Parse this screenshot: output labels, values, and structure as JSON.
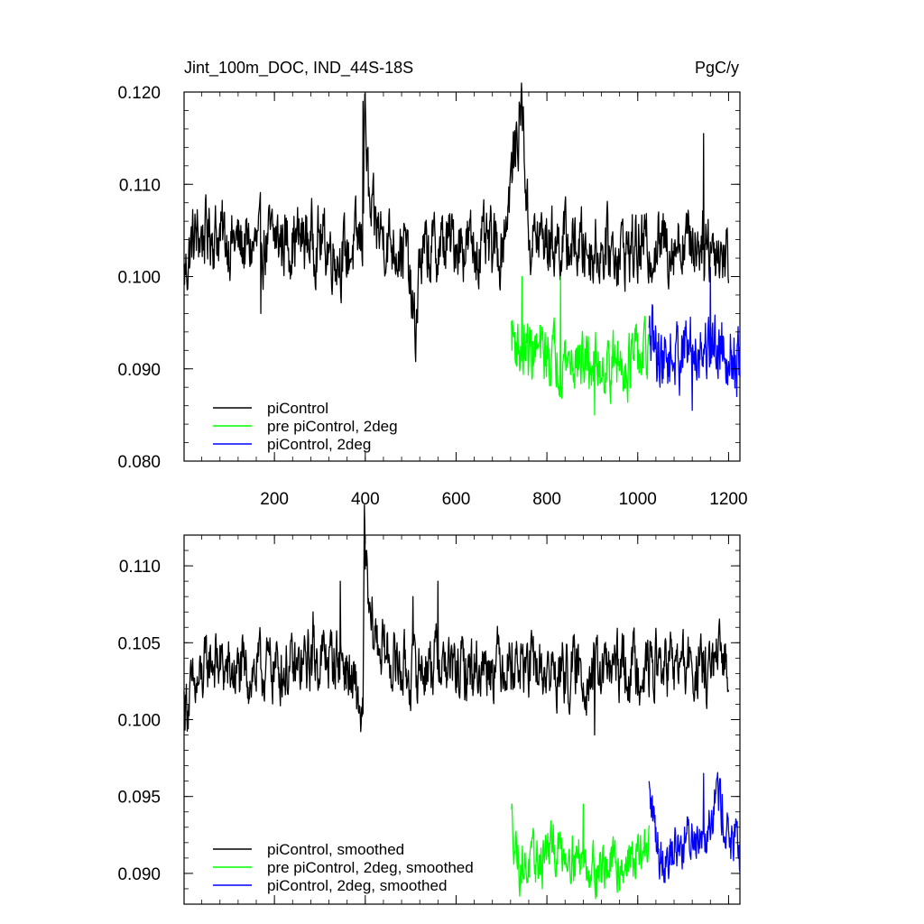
{
  "chart_data": [
    {
      "type": "line",
      "title": "Jint_100m_DOC, IND_44S-18S",
      "units": "PgC/y",
      "xlim": [
        1,
        1225
      ],
      "ylim": [
        0.08,
        0.12
      ],
      "x_ticks": [
        200,
        400,
        600,
        800,
        1000,
        1200
      ],
      "x_tick_labels": [
        "200",
        "400",
        "600",
        "800",
        "1000",
        "1200"
      ],
      "y_ticks": [
        0.08,
        0.09,
        0.1,
        0.11,
        0.12
      ],
      "y_tick_labels": [
        "0.080",
        "0.090",
        "0.100",
        "0.110",
        "0.120"
      ],
      "legend_position": "bottom-left",
      "series": [
        {
          "name": "piControl",
          "color": "#000000",
          "x_range": [
            1,
            1200
          ],
          "anchors": [
            [
              1,
              0.1
            ],
            [
              20,
              0.104
            ],
            [
              60,
              0.105
            ],
            [
              100,
              0.104
            ],
            [
              150,
              0.103
            ],
            [
              200,
              0.104
            ],
            [
              300,
              0.104
            ],
            [
              350,
              0.102
            ],
            [
              395,
              0.104
            ],
            [
              398,
              0.119
            ],
            [
              410,
              0.106
            ],
            [
              450,
              0.104
            ],
            [
              490,
              0.103
            ],
            [
              510,
              0.093
            ],
            [
              520,
              0.102
            ],
            [
              600,
              0.104
            ],
            [
              650,
              0.103
            ],
            [
              700,
              0.103
            ],
            [
              745,
              0.119
            ],
            [
              760,
              0.104
            ],
            [
              800,
              0.104
            ],
            [
              900,
              0.103
            ],
            [
              1000,
              0.103
            ],
            [
              1100,
              0.104
            ],
            [
              1150,
              0.104
            ],
            [
              1200,
              0.102
            ]
          ],
          "spikes": [
            [
              395,
              0.119
            ],
            [
              745,
              0.1195
            ],
            [
              510,
              0.092
            ],
            [
              170,
              0.096
            ],
            [
              1145,
              0.1155
            ]
          ],
          "noise": 0.004
        },
        {
          "name": "pre piControl, 2deg",
          "color": "#00ff00",
          "x_range": [
            722,
            1025
          ],
          "anchors": [
            [
              722,
              0.094
            ],
            [
              740,
              0.092
            ],
            [
              760,
              0.092
            ],
            [
              800,
              0.0915
            ],
            [
              850,
              0.091
            ],
            [
              900,
              0.0905
            ],
            [
              950,
              0.0905
            ],
            [
              1000,
              0.091
            ],
            [
              1025,
              0.0915
            ]
          ],
          "spikes": [
            [
              745,
              0.1
            ],
            [
              830,
              0.1
            ],
            [
              905,
              0.085
            ]
          ],
          "noise": 0.0035
        },
        {
          "name": "piControl, 2deg",
          "color": "#0000ff",
          "x_range": [
            1025,
            1225
          ],
          "anchors": [
            [
              1025,
              0.093
            ],
            [
              1060,
              0.091
            ],
            [
              1100,
              0.092
            ],
            [
              1150,
              0.0925
            ],
            [
              1190,
              0.093
            ],
            [
              1225,
              0.09
            ]
          ],
          "spikes": [
            [
              1160,
              0.101
            ],
            [
              1120,
              0.0855
            ],
            [
              1218,
              0.087
            ]
          ],
          "noise": 0.004
        }
      ]
    },
    {
      "type": "line",
      "title": "",
      "xlim": [
        1,
        1225
      ],
      "ylim": [
        0.088,
        0.112
      ],
      "x_ticks": [
        200,
        400,
        600,
        800,
        1000,
        1200
      ],
      "y_ticks": [
        0.09,
        0.095,
        0.1,
        0.105,
        0.11
      ],
      "y_tick_labels": [
        "0.090",
        "0.095",
        "0.100",
        "0.105",
        "0.110"
      ],
      "legend_position": "bottom-left",
      "series": [
        {
          "name": "piControl, smoothed",
          "color": "#000000",
          "x_range": [
            1,
            1200
          ],
          "anchors": [
            [
              1,
              0.101
            ],
            [
              30,
              0.102
            ],
            [
              60,
              0.104
            ],
            [
              100,
              0.103
            ],
            [
              150,
              0.103
            ],
            [
              200,
              0.1035
            ],
            [
              250,
              0.103
            ],
            [
              280,
              0.104
            ],
            [
              300,
              0.104
            ],
            [
              350,
              0.104
            ],
            [
              380,
              0.1015
            ],
            [
              395,
              0.1
            ],
            [
              398,
              0.1115
            ],
            [
              410,
              0.106
            ],
            [
              450,
              0.104
            ],
            [
              500,
              0.103
            ],
            [
              560,
              0.104
            ],
            [
              600,
              0.103
            ],
            [
              650,
              0.1035
            ],
            [
              700,
              0.104
            ],
            [
              800,
              0.103
            ],
            [
              900,
              0.103
            ],
            [
              1000,
              0.1035
            ],
            [
              1100,
              0.1035
            ],
            [
              1150,
              0.103
            ],
            [
              1200,
              0.104
            ]
          ],
          "spikes": [
            [
              285,
              0.107
            ],
            [
              345,
              0.109
            ],
            [
              470,
              0.105
            ],
            [
              505,
              0.108
            ],
            [
              560,
              0.109
            ],
            [
              635,
              0.102
            ],
            [
              905,
              0.099
            ]
          ],
          "noise": 0.0022
        },
        {
          "name": "pre piControl, 2deg, smoothed",
          "color": "#00ff00",
          "x_range": [
            722,
            1025
          ],
          "anchors": [
            [
              722,
              0.0935
            ],
            [
              740,
              0.0905
            ],
            [
              770,
              0.0905
            ],
            [
              800,
              0.0915
            ],
            [
              850,
              0.0915
            ],
            [
              900,
              0.0905
            ],
            [
              950,
              0.0905
            ],
            [
              1000,
              0.091
            ],
            [
              1025,
              0.092
            ]
          ],
          "spikes": [
            [
              880,
              0.0945
            ],
            [
              910,
              0.0885
            ],
            [
              790,
              0.089
            ]
          ],
          "noise": 0.0017
        },
        {
          "name": "piControl, 2deg, smoothed",
          "color": "#0000ff",
          "x_range": [
            1025,
            1225
          ],
          "anchors": [
            [
              1025,
              0.095
            ],
            [
              1050,
              0.091
            ],
            [
              1100,
              0.092
            ],
            [
              1150,
              0.093
            ],
            [
              1175,
              0.0955
            ],
            [
              1200,
              0.0925
            ],
            [
              1225,
              0.091
            ]
          ],
          "spikes": [
            [
              1025,
              0.096
            ],
            [
              1145,
              0.0965
            ],
            [
              1185,
              0.0925
            ]
          ],
          "noise": 0.0018
        }
      ]
    }
  ]
}
